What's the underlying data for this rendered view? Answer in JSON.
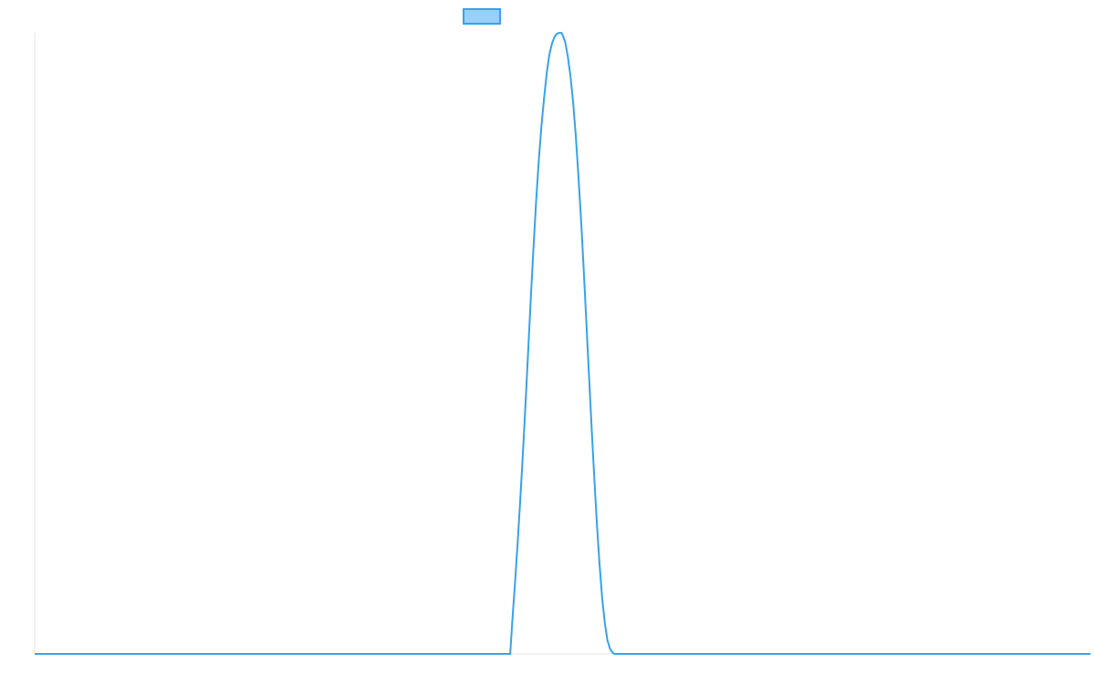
{
  "chart_data": {
    "type": "line",
    "title": "",
    "xlabel": "",
    "ylabel": "",
    "legend": {
      "placement": "top-center",
      "entries": [
        {
          "name": "",
          "color": "#36a2eb",
          "fill": "#9ad0f5"
        }
      ]
    },
    "grid": false,
    "x_range": [
      0,
      1
    ],
    "y_range": [
      0,
      1
    ],
    "series": [
      {
        "name": "",
        "color": "#36a2eb",
        "x": [
          0,
          0.4504,
          0.4525,
          0.455,
          0.4575,
          0.46,
          0.4625,
          0.465,
          0.4675,
          0.47,
          0.4725,
          0.475,
          0.4775,
          0.48,
          0.4825,
          0.485,
          0.4875,
          0.49,
          0.4925,
          0.495,
          0.4975,
          0.4988,
          0.5,
          0.5025,
          0.505,
          0.5075,
          0.51,
          0.5125,
          0.515,
          0.5175,
          0.52,
          0.5225,
          0.525,
          0.5275,
          0.53,
          0.5325,
          0.535,
          0.5375,
          0.54,
          0.5425,
          0.545,
          0.5475,
          0.5491,
          1
        ],
        "y": [
          0,
          0,
          0.055,
          0.115,
          0.18,
          0.25,
          0.325,
          0.405,
          0.49,
          0.575,
          0.655,
          0.73,
          0.795,
          0.85,
          0.895,
          0.935,
          0.965,
          0.983,
          0.994,
          0.999,
          1.0,
          1.0,
          0.997,
          0.985,
          0.962,
          0.93,
          0.888,
          0.835,
          0.77,
          0.7,
          0.62,
          0.535,
          0.45,
          0.365,
          0.285,
          0.21,
          0.145,
          0.09,
          0.05,
          0.022,
          0.008,
          0.002,
          0,
          0
        ]
      }
    ]
  }
}
